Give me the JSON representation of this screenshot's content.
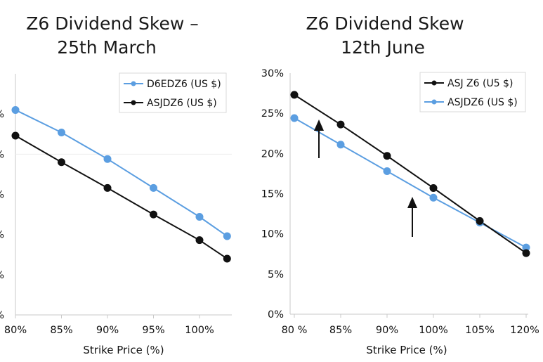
{
  "chart_data": [
    {
      "type": "line",
      "title_line1": "Z6 Dividend Skew –",
      "title_line2": "25th March",
      "xlabel": "Strike Price (%)",
      "x_ticks": [
        "80%",
        "85%",
        "90%",
        "95%",
        "100%"
      ],
      "y_ticks": [
        "%",
        "%",
        "%",
        "%",
        "%",
        "%"
      ],
      "legend_position": "top-right",
      "series": [
        {
          "name": "D6EDZ6 (US $)",
          "color": "#5b9ee1",
          "x": [
            80,
            85,
            90,
            95,
            100,
            103
          ],
          "y": [
            25.5,
            22.7,
            19.4,
            15.8,
            12.2,
            9.8
          ]
        },
        {
          "name": "ASJDZ6 (US $)",
          "color": "#111111",
          "x": [
            80,
            85,
            90,
            95,
            100,
            103
          ],
          "y": [
            22.3,
            19.0,
            15.8,
            12.5,
            9.3,
            7.0
          ]
        }
      ]
    },
    {
      "type": "line",
      "title_line1": "Z6 Dividend Skew",
      "title_line2": "12th June",
      "xlabel": "Strike Price (%)",
      "ylim": [
        0,
        30
      ],
      "x_ticks": [
        "80 %",
        "85%",
        "90%",
        "100%",
        "105%",
        "120%"
      ],
      "y_ticks": [
        "0%",
        "5%",
        "10%",
        "15%",
        "20%",
        "25%",
        "30%"
      ],
      "legend_position": "top-right",
      "series": [
        {
          "name": "ASJ Z6  (U5 $)",
          "color": "#111111",
          "x": [
            0,
            1,
            2,
            3,
            4,
            5
          ],
          "y": [
            27.3,
            23.6,
            19.7,
            15.7,
            11.6,
            7.6
          ]
        },
        {
          "name": "ASJDZ6 (US $)",
          "color": "#5b9ee1",
          "x": [
            0,
            1,
            2,
            3,
            4,
            5
          ],
          "y": [
            24.4,
            21.1,
            17.8,
            14.5,
            11.4,
            8.3
          ]
        }
      ],
      "annotations": [
        "up-arrow",
        "up-arrow"
      ]
    }
  ]
}
